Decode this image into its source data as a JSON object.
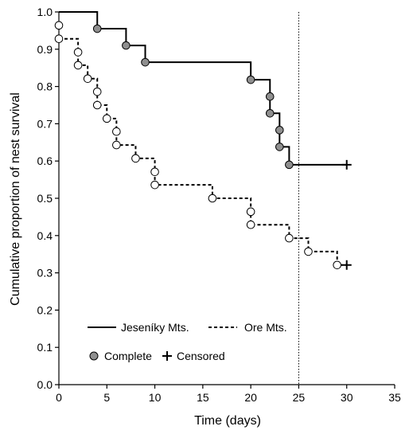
{
  "chart_data": {
    "type": "line",
    "xlabel": "Time (days)",
    "ylabel": "Cumulative proportion of nest survival",
    "xlim": [
      0,
      35
    ],
    "ylim": [
      0,
      1.0
    ],
    "xticks": [
      "0",
      "5",
      "10",
      "15",
      "20",
      "25",
      "30",
      "35"
    ],
    "yticks": [
      "0.0",
      "0.1",
      "0.2",
      "0.3",
      "0.4",
      "0.5",
      "0.6",
      "0.7",
      "0.8",
      "0.9",
      "1.0"
    ],
    "reference_line_x": 25,
    "grid": false,
    "legend_placement": "bottom-left",
    "series": [
      {
        "name": "Jeseníky Mts.",
        "line_style": "solid",
        "color": "#000000",
        "marker_fill": "#8f8f8f",
        "steps": [
          [
            0,
            1.0
          ],
          [
            4,
            0.955
          ],
          [
            7,
            0.91
          ],
          [
            9,
            0.865
          ],
          [
            20,
            0.818
          ],
          [
            22,
            0.773
          ],
          [
            22,
            0.728
          ],
          [
            23,
            0.683
          ],
          [
            23,
            0.638
          ],
          [
            24,
            0.59
          ]
        ],
        "end_x": 30,
        "complete_events": [
          [
            4,
            0.955
          ],
          [
            7,
            0.91
          ],
          [
            9,
            0.865
          ],
          [
            20,
            0.818
          ],
          [
            22,
            0.773
          ],
          [
            22,
            0.728
          ],
          [
            23,
            0.683
          ],
          [
            23,
            0.638
          ],
          [
            24,
            0.59
          ]
        ],
        "censored": [
          [
            30,
            0.59
          ]
        ]
      },
      {
        "name": "Ore Mts.",
        "line_style": "dashed",
        "color": "#000000",
        "marker_fill": "#ffffff",
        "steps": [
          [
            0,
            0.928
          ],
          [
            2,
            0.892
          ],
          [
            2,
            0.857
          ],
          [
            3,
            0.821
          ],
          [
            4,
            0.786
          ],
          [
            4,
            0.75
          ],
          [
            5,
            0.714
          ],
          [
            6,
            0.679
          ],
          [
            6,
            0.643
          ],
          [
            8,
            0.607
          ],
          [
            10,
            0.571
          ],
          [
            10,
            0.536
          ],
          [
            16,
            0.5
          ],
          [
            20,
            0.464
          ],
          [
            20,
            0.429
          ],
          [
            24,
            0.393
          ],
          [
            26,
            0.357
          ],
          [
            29,
            0.321
          ]
        ],
        "end_x": 30,
        "complete_events": [
          [
            0,
            0.964
          ],
          [
            0,
            0.928
          ],
          [
            2,
            0.892
          ],
          [
            2,
            0.857
          ],
          [
            3,
            0.821
          ],
          [
            4,
            0.786
          ],
          [
            4,
            0.75
          ],
          [
            5,
            0.714
          ],
          [
            6,
            0.679
          ],
          [
            6,
            0.643
          ],
          [
            8,
            0.607
          ],
          [
            10,
            0.571
          ],
          [
            10,
            0.536
          ],
          [
            16,
            0.5
          ],
          [
            20,
            0.464
          ],
          [
            20,
            0.429
          ],
          [
            24,
            0.393
          ],
          [
            26,
            0.357
          ],
          [
            29,
            0.321
          ]
        ],
        "censored": [
          [
            30,
            0.321
          ]
        ]
      }
    ],
    "legend": {
      "complete_label": "Complete",
      "censored_label": "Censored"
    }
  }
}
